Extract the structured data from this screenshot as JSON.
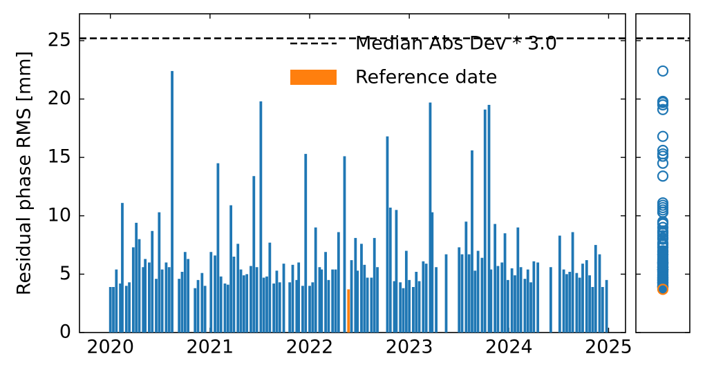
{
  "chart_data": {
    "type": "bar",
    "ylabel": "Residual phase RMS [mm]",
    "xlim": [
      2019.69,
      2025.17
    ],
    "xticks": [
      2020,
      2021,
      2022,
      2023,
      2024,
      2025
    ],
    "ylim": [
      0,
      27.3
    ],
    "yticks": [
      0,
      5,
      10,
      15,
      20,
      25
    ],
    "legend": "upper right",
    "hline": {
      "name": "Median Abs Dev * 3.0",
      "value": 25.2,
      "color": "#000000"
    },
    "series": [
      {
        "color": "#1f77b4",
        "x": [
          2020.0,
          2020.03,
          2020.06,
          2020.1,
          2020.12,
          2020.16,
          2020.19,
          2020.23,
          2020.26,
          2020.29,
          2020.33,
          2020.35,
          2020.39,
          2020.42,
          2020.46,
          2020.49,
          2020.52,
          2020.56,
          2020.59,
          2020.62,
          2020.69,
          2020.72,
          2020.75,
          2020.78,
          2020.85,
          2020.88,
          2020.92,
          2020.95,
          2021.01,
          2021.05,
          2021.08,
          2021.11,
          2021.15,
          2021.18,
          2021.21,
          2021.24,
          2021.28,
          2021.31,
          2021.34,
          2021.37,
          2021.41,
          2021.44,
          2021.47,
          2021.51,
          2021.54,
          2021.57,
          2021.6,
          2021.64,
          2021.67,
          2021.7,
          2021.74,
          2021.8,
          2021.83,
          2021.87,
          2021.89,
          2021.93,
          2021.96,
          2022.0,
          2022.03,
          2022.06,
          2022.1,
          2022.12,
          2022.16,
          2022.19,
          2022.23,
          2022.26,
          2022.29,
          2022.35,
          2022.42,
          2022.46,
          2022.48,
          2022.52,
          2022.55,
          2022.58,
          2022.62,
          2022.65,
          2022.68,
          2022.78,
          2022.81,
          2022.85,
          2022.87,
          2022.91,
          2022.94,
          2022.97,
          2023.0,
          2023.04,
          2023.07,
          2023.1,
          2023.14,
          2023.17,
          2023.21,
          2023.23,
          2023.27,
          2023.37,
          2023.5,
          2023.53,
          2023.57,
          2023.6,
          2023.63,
          2023.66,
          2023.69,
          2023.73,
          2023.76,
          2023.8,
          2023.82,
          2023.86,
          2023.89,
          2023.93,
          2023.96,
          2023.99,
          2024.03,
          2024.06,
          2024.09,
          2024.12,
          2024.16,
          2024.19,
          2024.22,
          2024.25,
          2024.29,
          2024.42,
          2024.51,
          2024.55,
          2024.58,
          2024.61,
          2024.64,
          2024.68,
          2024.71,
          2024.74,
          2024.78,
          2024.81,
          2024.84,
          2024.87,
          2024.91,
          2024.94,
          2024.98
        ],
        "values": [
          3.9,
          3.9,
          5.4,
          4.2,
          11.1,
          4.0,
          4.3,
          7.3,
          9.4,
          8.0,
          5.6,
          6.3,
          6.0,
          8.7,
          4.6,
          10.3,
          5.4,
          6.0,
          5.6,
          22.4,
          4.6,
          5.2,
          6.9,
          6.3,
          3.8,
          4.5,
          5.1,
          4.0,
          6.9,
          6.6,
          14.5,
          4.8,
          4.2,
          4.1,
          10.9,
          6.5,
          7.6,
          5.4,
          4.9,
          5.0,
          5.7,
          13.4,
          5.6,
          19.8,
          4.7,
          4.8,
          7.7,
          4.2,
          5.3,
          4.3,
          5.9,
          4.3,
          5.8,
          4.5,
          6.0,
          4.0,
          15.3,
          4.0,
          4.3,
          9.0,
          5.6,
          5.4,
          6.9,
          4.5,
          5.4,
          5.4,
          8.6,
          15.1,
          6.2,
          8.1,
          5.3,
          7.6,
          5.8,
          4.7,
          4.7,
          8.1,
          5.6,
          16.8,
          10.7,
          4.4,
          10.5,
          4.3,
          3.8,
          7.0,
          4.5,
          3.9,
          5.2,
          4.4,
          6.1,
          5.9,
          19.7,
          10.3,
          5.6,
          6.7,
          7.3,
          6.7,
          9.5,
          6.7,
          15.6,
          5.3,
          7.0,
          6.4,
          19.1,
          19.5,
          5.4,
          9.3,
          5.7,
          6.0,
          8.5,
          4.5,
          5.5,
          4.9,
          9.0,
          5.6,
          4.6,
          5.4,
          4.3,
          6.1,
          6.0,
          5.6,
          8.3,
          5.4,
          5.0,
          5.2,
          8.6,
          5.1,
          4.7,
          5.9,
          6.2,
          4.9,
          3.9,
          7.5,
          6.7,
          3.9,
          4.5
        ]
      },
      {
        "name": "Reference date",
        "color": "#ff7f0e",
        "x": [
          2022.39
        ],
        "values": [
          3.7
        ]
      }
    ]
  }
}
